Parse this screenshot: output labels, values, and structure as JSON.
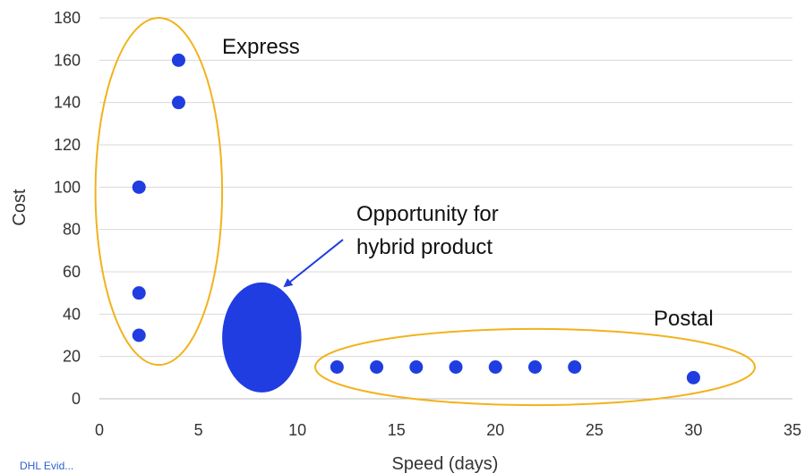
{
  "chart_data": {
    "type": "scatter",
    "xlabel": "Speed (days)",
    "ylabel": "Cost",
    "xlim": [
      0,
      35
    ],
    "ylim": [
      0,
      180
    ],
    "x_ticks": [
      0,
      5,
      10,
      15,
      20,
      25,
      30,
      35
    ],
    "y_ticks": [
      0,
      20,
      40,
      60,
      80,
      100,
      120,
      140,
      160,
      180
    ],
    "grid": "horizontal",
    "series": [
      {
        "color": "#1f3de0",
        "points": [
          {
            "x": 2,
            "y": 30
          },
          {
            "x": 2,
            "y": 50
          },
          {
            "x": 2,
            "y": 100
          },
          {
            "x": 4,
            "y": 140
          },
          {
            "x": 4,
            "y": 160
          },
          {
            "x": 12,
            "y": 15
          },
          {
            "x": 14,
            "y": 15
          },
          {
            "x": 16,
            "y": 15
          },
          {
            "x": 18,
            "y": 15
          },
          {
            "x": 20,
            "y": 15
          },
          {
            "x": 22,
            "y": 15
          },
          {
            "x": 24,
            "y": 15
          },
          {
            "x": 30,
            "y": 10
          }
        ]
      }
    ],
    "opportunity_bubble": {
      "x": 8.2,
      "y": 29,
      "rx_days": 2,
      "ry_cost": 26,
      "color": "#1f3de0"
    },
    "groups": [
      {
        "label": "Express",
        "cx": 3,
        "cy": 98,
        "rx_days": 3.2,
        "ry_cost": 82,
        "color": "#f2b21b"
      },
      {
        "label": "Postal",
        "cx": 22,
        "cy": 15,
        "rx_days": 11.1,
        "ry_cost": 18,
        "color": "#f2b21b"
      }
    ],
    "annotations": {
      "express": "Express",
      "postal": "Postal",
      "opportunity_line1": "Opportunity for",
      "opportunity_line2": "hybrid product"
    }
  },
  "source_text": "DHL Evid..."
}
